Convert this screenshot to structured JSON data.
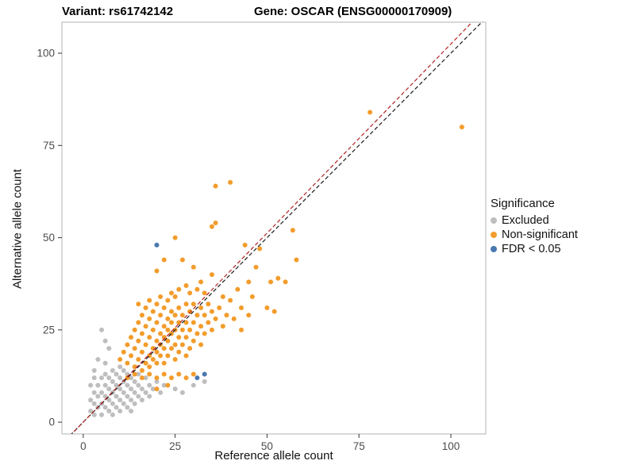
{
  "header": {
    "title_left": "Variant: rs61742142",
    "title_right": "Gene: OSCAR (ENSG00000170909)"
  },
  "chart_data": {
    "type": "scatter",
    "title": "Variant: rs61742142  /  Gene: OSCAR (ENSG00000170909)",
    "xlabel": "Reference allele count",
    "ylabel": "Alternative allele count",
    "xlim": [
      -5.8,
      109.5
    ],
    "ylim": [
      -3.2,
      108.4
    ],
    "xticks": [
      0,
      25,
      50,
      75,
      100
    ],
    "yticks": [
      0,
      25,
      50,
      75,
      100
    ],
    "grid": false,
    "panel_border_color": "#b3b3b3",
    "tick_color": "#333333",
    "tick_label_color": "#4d4d4d",
    "legend": {
      "title": "Significance",
      "position": "right",
      "items": [
        {
          "label": "Excluded",
          "color": "#BEBEBE"
        },
        {
          "label": "Non-significant",
          "color": "#F39C2B"
        },
        {
          "label": "FDR < 0.05",
          "color": "#4A78B0"
        }
      ]
    },
    "lines": [
      {
        "name": "identity",
        "style": "dashed",
        "color": "#1A1A1A",
        "slope": 1,
        "intercept": 0
      },
      {
        "name": "fit",
        "style": "dashed",
        "color": "#B22222",
        "slope": 1.025,
        "intercept": 0
      }
    ],
    "series": [
      {
        "name": "Excluded",
        "color": "#BEBEBE",
        "points": [
          [
            2,
            3
          ],
          [
            2,
            6
          ],
          [
            2,
            10
          ],
          [
            3,
            2
          ],
          [
            3,
            5
          ],
          [
            3,
            8
          ],
          [
            3,
            12
          ],
          [
            3,
            14
          ],
          [
            4,
            4
          ],
          [
            4,
            7
          ],
          [
            4,
            10
          ],
          [
            4,
            17
          ],
          [
            5,
            2
          ],
          [
            5,
            5
          ],
          [
            5,
            8
          ],
          [
            5,
            12
          ],
          [
            5,
            25
          ],
          [
            6,
            4
          ],
          [
            6,
            7
          ],
          [
            6,
            10
          ],
          [
            6,
            13
          ],
          [
            6,
            16
          ],
          [
            6,
            22
          ],
          [
            7,
            3
          ],
          [
            7,
            6
          ],
          [
            7,
            9
          ],
          [
            7,
            12
          ],
          [
            7,
            20
          ],
          [
            8,
            2
          ],
          [
            8,
            5
          ],
          [
            8,
            8
          ],
          [
            8,
            11
          ],
          [
            8,
            14
          ],
          [
            9,
            4
          ],
          [
            9,
            7
          ],
          [
            9,
            10
          ],
          [
            9,
            13
          ],
          [
            10,
            3
          ],
          [
            10,
            6
          ],
          [
            10,
            9
          ],
          [
            10,
            12
          ],
          [
            10,
            15
          ],
          [
            11,
            5
          ],
          [
            11,
            8
          ],
          [
            11,
            11
          ],
          [
            11,
            14
          ],
          [
            12,
            4
          ],
          [
            12,
            7
          ],
          [
            12,
            10
          ],
          [
            12,
            13
          ],
          [
            13,
            3
          ],
          [
            13,
            6
          ],
          [
            13,
            9
          ],
          [
            13,
            12
          ],
          [
            14,
            5
          ],
          [
            14,
            8
          ],
          [
            14,
            11
          ],
          [
            15,
            7
          ],
          [
            15,
            10
          ],
          [
            15,
            13
          ],
          [
            16,
            6
          ],
          [
            16,
            9
          ],
          [
            17,
            8
          ],
          [
            17,
            12
          ],
          [
            18,
            7
          ],
          [
            18,
            10
          ],
          [
            19,
            9
          ],
          [
            20,
            11
          ],
          [
            21,
            8
          ],
          [
            22,
            10
          ],
          [
            25,
            9
          ],
          [
            27,
            8
          ],
          [
            30,
            10
          ],
          [
            33,
            11
          ]
        ]
      },
      {
        "name": "Non-significant",
        "color": "#F39C2B",
        "points": [
          [
            12,
            12
          ],
          [
            14,
            13
          ],
          [
            16,
            12
          ],
          [
            18,
            13
          ],
          [
            20,
            12
          ],
          [
            22,
            13
          ],
          [
            24,
            12
          ],
          [
            26,
            13
          ],
          [
            28,
            12
          ],
          [
            30,
            13
          ],
          [
            20,
            9
          ],
          [
            23,
            10
          ],
          [
            10,
            17
          ],
          [
            11,
            19
          ],
          [
            12,
            16
          ],
          [
            12,
            21
          ],
          [
            13,
            18
          ],
          [
            13,
            23
          ],
          [
            14,
            15
          ],
          [
            14,
            20
          ],
          [
            14,
            25
          ],
          [
            15,
            17
          ],
          [
            15,
            22
          ],
          [
            15,
            27
          ],
          [
            15,
            32
          ],
          [
            16,
            14
          ],
          [
            16,
            19
          ],
          [
            16,
            24
          ],
          [
            16,
            29
          ],
          [
            17,
            16
          ],
          [
            17,
            21
          ],
          [
            17,
            26
          ],
          [
            17,
            31
          ],
          [
            18,
            15
          ],
          [
            18,
            18
          ],
          [
            18,
            23
          ],
          [
            18,
            28
          ],
          [
            18,
            33
          ],
          [
            19,
            17
          ],
          [
            19,
            20
          ],
          [
            19,
            25
          ],
          [
            19,
            30
          ],
          [
            20,
            16
          ],
          [
            20,
            19
          ],
          [
            20,
            22
          ],
          [
            20,
            27
          ],
          [
            20,
            32
          ],
          [
            20,
            41
          ],
          [
            21,
            18
          ],
          [
            21,
            21
          ],
          [
            21,
            24
          ],
          [
            21,
            29
          ],
          [
            21,
            34
          ],
          [
            22,
            16
          ],
          [
            22,
            20
          ],
          [
            22,
            23
          ],
          [
            22,
            26
          ],
          [
            22,
            31
          ],
          [
            22,
            44
          ],
          [
            23,
            18
          ],
          [
            23,
            22
          ],
          [
            23,
            25
          ],
          [
            23,
            28
          ],
          [
            23,
            33
          ],
          [
            24,
            20
          ],
          [
            24,
            24
          ],
          [
            24,
            27
          ],
          [
            24,
            30
          ],
          [
            24,
            35
          ],
          [
            25,
            17
          ],
          [
            25,
            21
          ],
          [
            25,
            25
          ],
          [
            25,
            29
          ],
          [
            25,
            34
          ],
          [
            25,
            50
          ],
          [
            26,
            19
          ],
          [
            26,
            23
          ],
          [
            26,
            27
          ],
          [
            26,
            31
          ],
          [
            26,
            36
          ],
          [
            27,
            21
          ],
          [
            27,
            25
          ],
          [
            27,
            29
          ],
          [
            27,
            44
          ],
          [
            28,
            18
          ],
          [
            28,
            23
          ],
          [
            28,
            27
          ],
          [
            28,
            32
          ],
          [
            28,
            37
          ],
          [
            29,
            20
          ],
          [
            29,
            25
          ],
          [
            29,
            30
          ],
          [
            29,
            35
          ],
          [
            30,
            22
          ],
          [
            30,
            27
          ],
          [
            30,
            32
          ],
          [
            30,
            42
          ],
          [
            31,
            24
          ],
          [
            31,
            29
          ],
          [
            31,
            36
          ],
          [
            32,
            21
          ],
          [
            32,
            26
          ],
          [
            32,
            31
          ],
          [
            32,
            38
          ],
          [
            33,
            24
          ],
          [
            33,
            29
          ],
          [
            33,
            35
          ],
          [
            34,
            27
          ],
          [
            34,
            32
          ],
          [
            35,
            25
          ],
          [
            35,
            30
          ],
          [
            35,
            40
          ],
          [
            35,
            53
          ],
          [
            36,
            28
          ],
          [
            36,
            54
          ],
          [
            36,
            64
          ],
          [
            37,
            31
          ],
          [
            38,
            26
          ],
          [
            38,
            34
          ],
          [
            39,
            29
          ],
          [
            40,
            33
          ],
          [
            40,
            65
          ],
          [
            41,
            28
          ],
          [
            42,
            36
          ],
          [
            43,
            25
          ],
          [
            43,
            31
          ],
          [
            44,
            48
          ],
          [
            45,
            29
          ],
          [
            45,
            38
          ],
          [
            46,
            34
          ],
          [
            47,
            42
          ],
          [
            48,
            47
          ],
          [
            50,
            31
          ],
          [
            51,
            38
          ],
          [
            52,
            30
          ],
          [
            53,
            39
          ],
          [
            55,
            38
          ],
          [
            57,
            52
          ],
          [
            58,
            44
          ],
          [
            78,
            84
          ],
          [
            103,
            80
          ]
        ]
      },
      {
        "name": "FDR < 0.05",
        "color": "#4A78B0",
        "points": [
          [
            20,
            48
          ],
          [
            31,
            12
          ],
          [
            33,
            13
          ]
        ]
      }
    ]
  }
}
